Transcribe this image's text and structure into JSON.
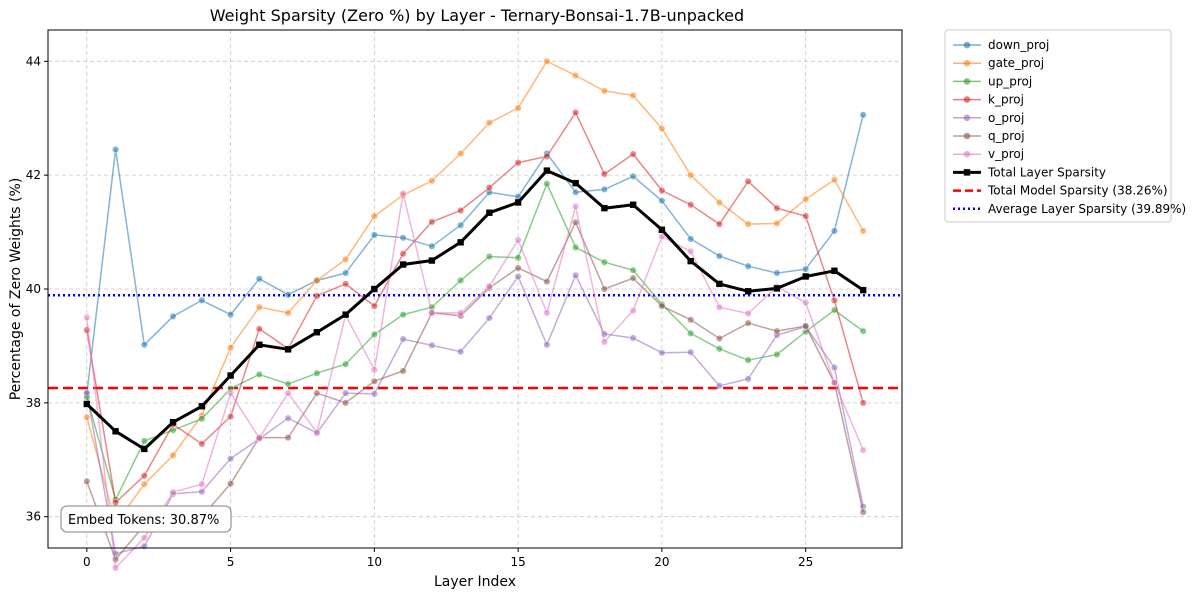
{
  "chart_data": {
    "type": "line",
    "title": "Weight Sparsity (Zero %) by Layer - Ternary-Bonsai-1.7B-unpacked",
    "xlabel": "Layer Index",
    "ylabel": "Percentage of Zero Weights (%)",
    "xlim": [
      -1.35,
      28.35
    ],
    "ylim": [
      35.45,
      44.55
    ],
    "xticks": [
      0,
      5,
      10,
      15,
      20,
      25
    ],
    "yticks": [
      36,
      38,
      40,
      42,
      44
    ],
    "grid": true,
    "legend_position": "outside-top-right",
    "x": [
      0,
      1,
      2,
      3,
      4,
      5,
      6,
      7,
      8,
      9,
      10,
      11,
      12,
      13,
      14,
      15,
      16,
      17,
      18,
      19,
      20,
      21,
      22,
      23,
      24,
      25,
      26,
      27
    ],
    "series": [
      {
        "name": "down_proj",
        "color": "#1f77b4",
        "values": [
          38.15,
          42.45,
          39.02,
          39.52,
          39.8,
          39.55,
          40.18,
          39.9,
          40.15,
          40.28,
          40.95,
          40.9,
          40.75,
          41.12,
          41.7,
          41.62,
          42.38,
          41.7,
          41.75,
          41.98,
          41.55,
          40.88,
          40.58,
          40.4,
          40.28,
          40.35,
          41.02,
          43.06
        ]
      },
      {
        "name": "gate_proj",
        "color": "#ff7f0e",
        "values": [
          37.75,
          35.88,
          36.57,
          37.08,
          37.78,
          38.97,
          39.68,
          39.58,
          40.15,
          40.52,
          41.28,
          41.65,
          41.9,
          42.38,
          42.92,
          43.18,
          44.0,
          43.75,
          43.48,
          43.4,
          42.82,
          42.0,
          41.52,
          41.14,
          41.15,
          41.58,
          41.92,
          41.02
        ]
      },
      {
        "name": "up_proj",
        "color": "#2ca02c",
        "values": [
          38.1,
          36.3,
          37.33,
          37.52,
          37.72,
          38.25,
          38.5,
          38.33,
          38.52,
          38.68,
          39.2,
          39.55,
          39.68,
          40.15,
          40.57,
          40.55,
          41.85,
          40.73,
          40.47,
          40.33,
          39.73,
          39.22,
          38.95,
          38.75,
          38.85,
          39.25,
          39.63,
          39.26
        ]
      },
      {
        "name": "k_proj",
        "color": "#d62728",
        "values": [
          39.28,
          36.25,
          36.72,
          37.62,
          37.28,
          37.76,
          39.3,
          38.95,
          39.88,
          40.09,
          39.7,
          40.62,
          41.18,
          41.38,
          41.78,
          42.22,
          42.33,
          43.1,
          42.02,
          42.37,
          41.73,
          41.48,
          41.14,
          41.89,
          41.42,
          41.28,
          39.8,
          38.0
        ]
      },
      {
        "name": "o_proj",
        "color": "#9467bd",
        "values": [
          38.18,
          35.35,
          35.48,
          36.4,
          36.44,
          37.02,
          37.37,
          37.73,
          37.47,
          38.17,
          38.16,
          39.12,
          39.01,
          38.9,
          39.49,
          40.22,
          39.02,
          40.24,
          39.21,
          39.14,
          38.88,
          38.89,
          38.3,
          38.42,
          39.19,
          39.34,
          38.62,
          36.18
        ]
      },
      {
        "name": "q_proj",
        "color": "#8c564b",
        "values": [
          36.62,
          35.25,
          35.85,
          36.03,
          36.0,
          36.58,
          37.39,
          37.39,
          38.17,
          38.0,
          38.38,
          38.56,
          39.58,
          39.53,
          40.02,
          40.37,
          40.13,
          41.17,
          40.0,
          40.19,
          39.7,
          39.46,
          39.13,
          39.4,
          39.26,
          39.35,
          38.35,
          36.08
        ]
      },
      {
        "name": "v_proj",
        "color": "#e377c2",
        "values": [
          39.5,
          35.1,
          35.63,
          36.43,
          36.57,
          38.17,
          37.38,
          38.17,
          37.48,
          39.54,
          38.58,
          41.68,
          39.58,
          39.58,
          40.05,
          40.86,
          39.58,
          41.45,
          39.07,
          39.62,
          40.92,
          40.66,
          39.68,
          39.57,
          40.04,
          39.76,
          38.36,
          37.17
        ]
      },
      {
        "name": "Total Layer Sparsity",
        "color": "#000000",
        "values": [
          37.98,
          37.5,
          37.19,
          37.66,
          37.94,
          38.48,
          39.02,
          38.94,
          39.24,
          39.55,
          40.0,
          40.43,
          40.5,
          40.82,
          41.34,
          41.52,
          42.08,
          41.86,
          41.42,
          41.48,
          41.04,
          40.49,
          40.09,
          39.96,
          40.01,
          40.22,
          40.32,
          39.98
        ]
      }
    ],
    "reference_lines": [
      {
        "name": "Total Model Sparsity (38.26%)",
        "value": 38.26,
        "color": "#ff0000",
        "style": "dashed"
      },
      {
        "name": "Average Layer Sparsity (39.89%)",
        "value": 39.89,
        "color": "#0000ff",
        "style": "dotted"
      }
    ],
    "annotation": "Embed Tokens: 30.87%"
  }
}
